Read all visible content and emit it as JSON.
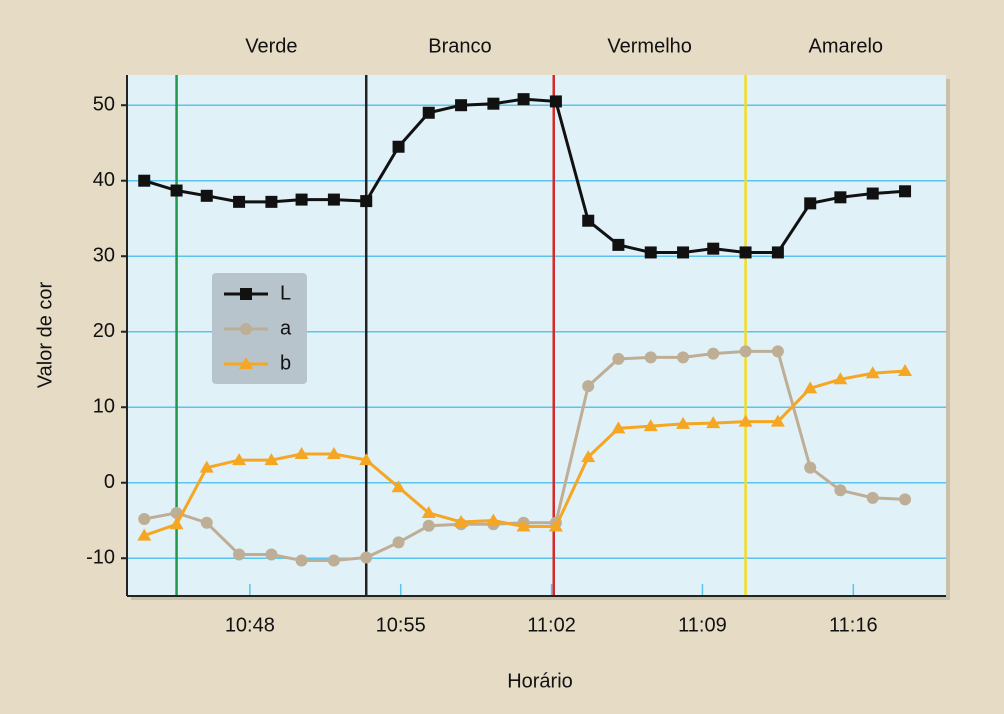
{
  "chart_data": {
    "type": "line",
    "xlabel": "Horário",
    "ylabel": "Valor de cor",
    "x": [
      643.1,
      644.6,
      646.0,
      647.5,
      649.0,
      650.4,
      651.9,
      653.4,
      654.9,
      656.3,
      657.8,
      659.3,
      660.7,
      662.2,
      663.7,
      665.1,
      666.6,
      668.1,
      669.5,
      671.0,
      672.5,
      674.0,
      675.4,
      676.9,
      678.4
    ],
    "series": [
      {
        "name": "L",
        "color": "#111111",
        "marker": "square",
        "values": [
          40,
          38.7,
          38,
          37.2,
          37.2,
          37.5,
          37.5,
          37.3,
          44.5,
          49,
          50,
          50.2,
          50.8,
          50.5,
          34.7,
          31.5,
          30.5,
          30.5,
          31,
          30.5,
          30.5,
          37,
          37.8,
          38.3,
          38.6
        ]
      },
      {
        "name": "a",
        "color": "#bfae96",
        "marker": "circle",
        "values": [
          -4.8,
          -4,
          -5.3,
          -9.5,
          -9.5,
          -10.3,
          -10.3,
          -9.9,
          -7.9,
          -5.7,
          -5.5,
          -5.5,
          -5.3,
          -5.3,
          12.8,
          16.4,
          16.6,
          16.6,
          17.1,
          17.4,
          17.4,
          2,
          -1,
          -2,
          -2.2
        ]
      },
      {
        "name": "b",
        "color": "#f5a623",
        "marker": "triangle",
        "values": [
          -7,
          -5.5,
          2,
          3,
          3,
          3.8,
          3.8,
          3,
          -0.6,
          -4,
          -5.2,
          -5,
          -5.8,
          -5.8,
          3.4,
          7.2,
          7.5,
          7.8,
          7.9,
          8.1,
          8.1,
          12.5,
          13.7,
          14.5,
          14.8
        ]
      }
    ],
    "annotations": [
      {
        "label": "Verde",
        "x": 644.6,
        "color": "#1e9a4a"
      },
      {
        "label": "Branco",
        "x": 653.4,
        "color": "#222222"
      },
      {
        "label": "Vermelho",
        "x": 662.1,
        "color": "#d42a2a"
      },
      {
        "label": "Amarelo",
        "x": 671.0,
        "color": "#f4dc1e"
      }
    ],
    "xlim": [
      642.3,
      680.3
    ],
    "xticks": [
      {
        "value": 648,
        "label": "10:48"
      },
      {
        "value": 655,
        "label": "10:55"
      },
      {
        "value": 662,
        "label": "11:02"
      },
      {
        "value": 669,
        "label": "11:09"
      },
      {
        "value": 676,
        "label": "11:16"
      }
    ],
    "ylim": [
      -15,
      54
    ],
    "yticks": [
      -10,
      0,
      10,
      20,
      30,
      40,
      50
    ],
    "grid": true,
    "legend": "upper left"
  }
}
